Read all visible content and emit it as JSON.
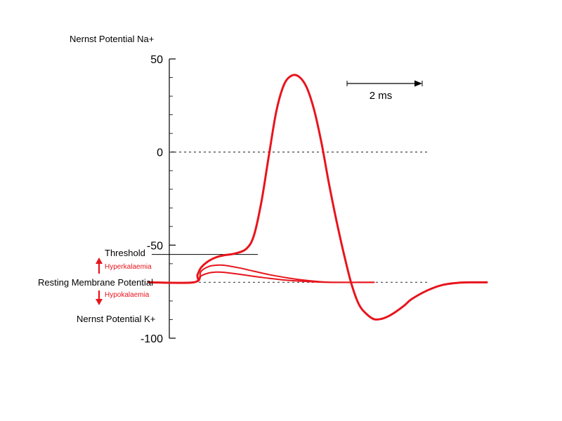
{
  "chart_data": {
    "type": "line",
    "title": "",
    "xlabel": "",
    "ylabel": "",
    "ylim": [
      -100,
      50
    ],
    "y_ticks": [
      {
        "value": 50,
        "label": "50"
      },
      {
        "value": 0,
        "label": "0"
      },
      {
        "value": -50,
        "label": "-50"
      },
      {
        "value": -100,
        "label": "-100"
      }
    ],
    "reference_lines": [
      {
        "name": "zero-line",
        "value": 0,
        "style": "dotted"
      },
      {
        "name": "resting-line",
        "value": -70,
        "style": "dotted"
      },
      {
        "name": "threshold-line",
        "value": -55,
        "style": "solid"
      }
    ],
    "scale_bar": {
      "label": "2 ms",
      "duration_ms": 2
    },
    "series_color": "#e8141c",
    "series": [
      {
        "x": [
          -3,
          -1.8,
          -1.7,
          -1.6,
          -1.4,
          -1.2,
          -1.0,
          -0.7,
          -0.4,
          -0.2,
          0,
          0.2,
          0.4,
          0.6,
          0.8,
          1.0,
          1.2,
          1.4,
          1.6,
          1.8,
          2.0,
          2.2,
          2.4,
          2.6,
          2.8,
          3.0,
          3.2,
          3.4,
          3.6,
          3.8,
          4.0,
          4.4,
          4.8,
          5.2,
          5.6,
          6.0
        ],
        "y": [
          -70,
          -70,
          -66,
          -62,
          -58.5,
          -56.5,
          -55.5,
          -54.5,
          -52,
          -45,
          -27,
          -2,
          22,
          36,
          41,
          40.5,
          35,
          23,
          5,
          -17,
          -37,
          -55,
          -71,
          -82,
          -87,
          -89.8,
          -89.6,
          -88,
          -85.5,
          -82.5,
          -79,
          -74.5,
          -71.5,
          -70.3,
          -70,
          -70
        ]
      },
      {
        "x": [
          -3,
          -1.8,
          -1.6,
          -1.4,
          -1.2,
          -1.0,
          -0.6,
          -0.2,
          0.2,
          0.6,
          1.0,
          1.6,
          2.0,
          3.0
        ],
        "y": [
          -70,
          -70,
          -64,
          -61.5,
          -60.8,
          -60.8,
          -62.2,
          -64,
          -65.8,
          -67.3,
          -68.5,
          -69.7,
          -70,
          -70
        ]
      },
      {
        "x": [
          -3,
          -1.8,
          -1.6,
          -1.4,
          -1.2,
          -1.0,
          -0.6,
          -0.2,
          0.2,
          0.6,
          1.0,
          1.6,
          2.0,
          3.0
        ],
        "y": [
          -70,
          -70,
          -66.5,
          -65,
          -64.5,
          -64.6,
          -65.6,
          -66.8,
          -67.8,
          -68.7,
          -69.3,
          -69.9,
          -70,
          -70
        ]
      }
    ]
  },
  "labels": {
    "nernst_na": "Nernst Potential Na+",
    "threshold": "Threshold",
    "hyperkalaemia": "Hyperkalaemia",
    "resting": "Resting Membrane Potential",
    "hypokalaemia": "Hypokalaemia",
    "nernst_k": "Nernst Potential K+"
  }
}
